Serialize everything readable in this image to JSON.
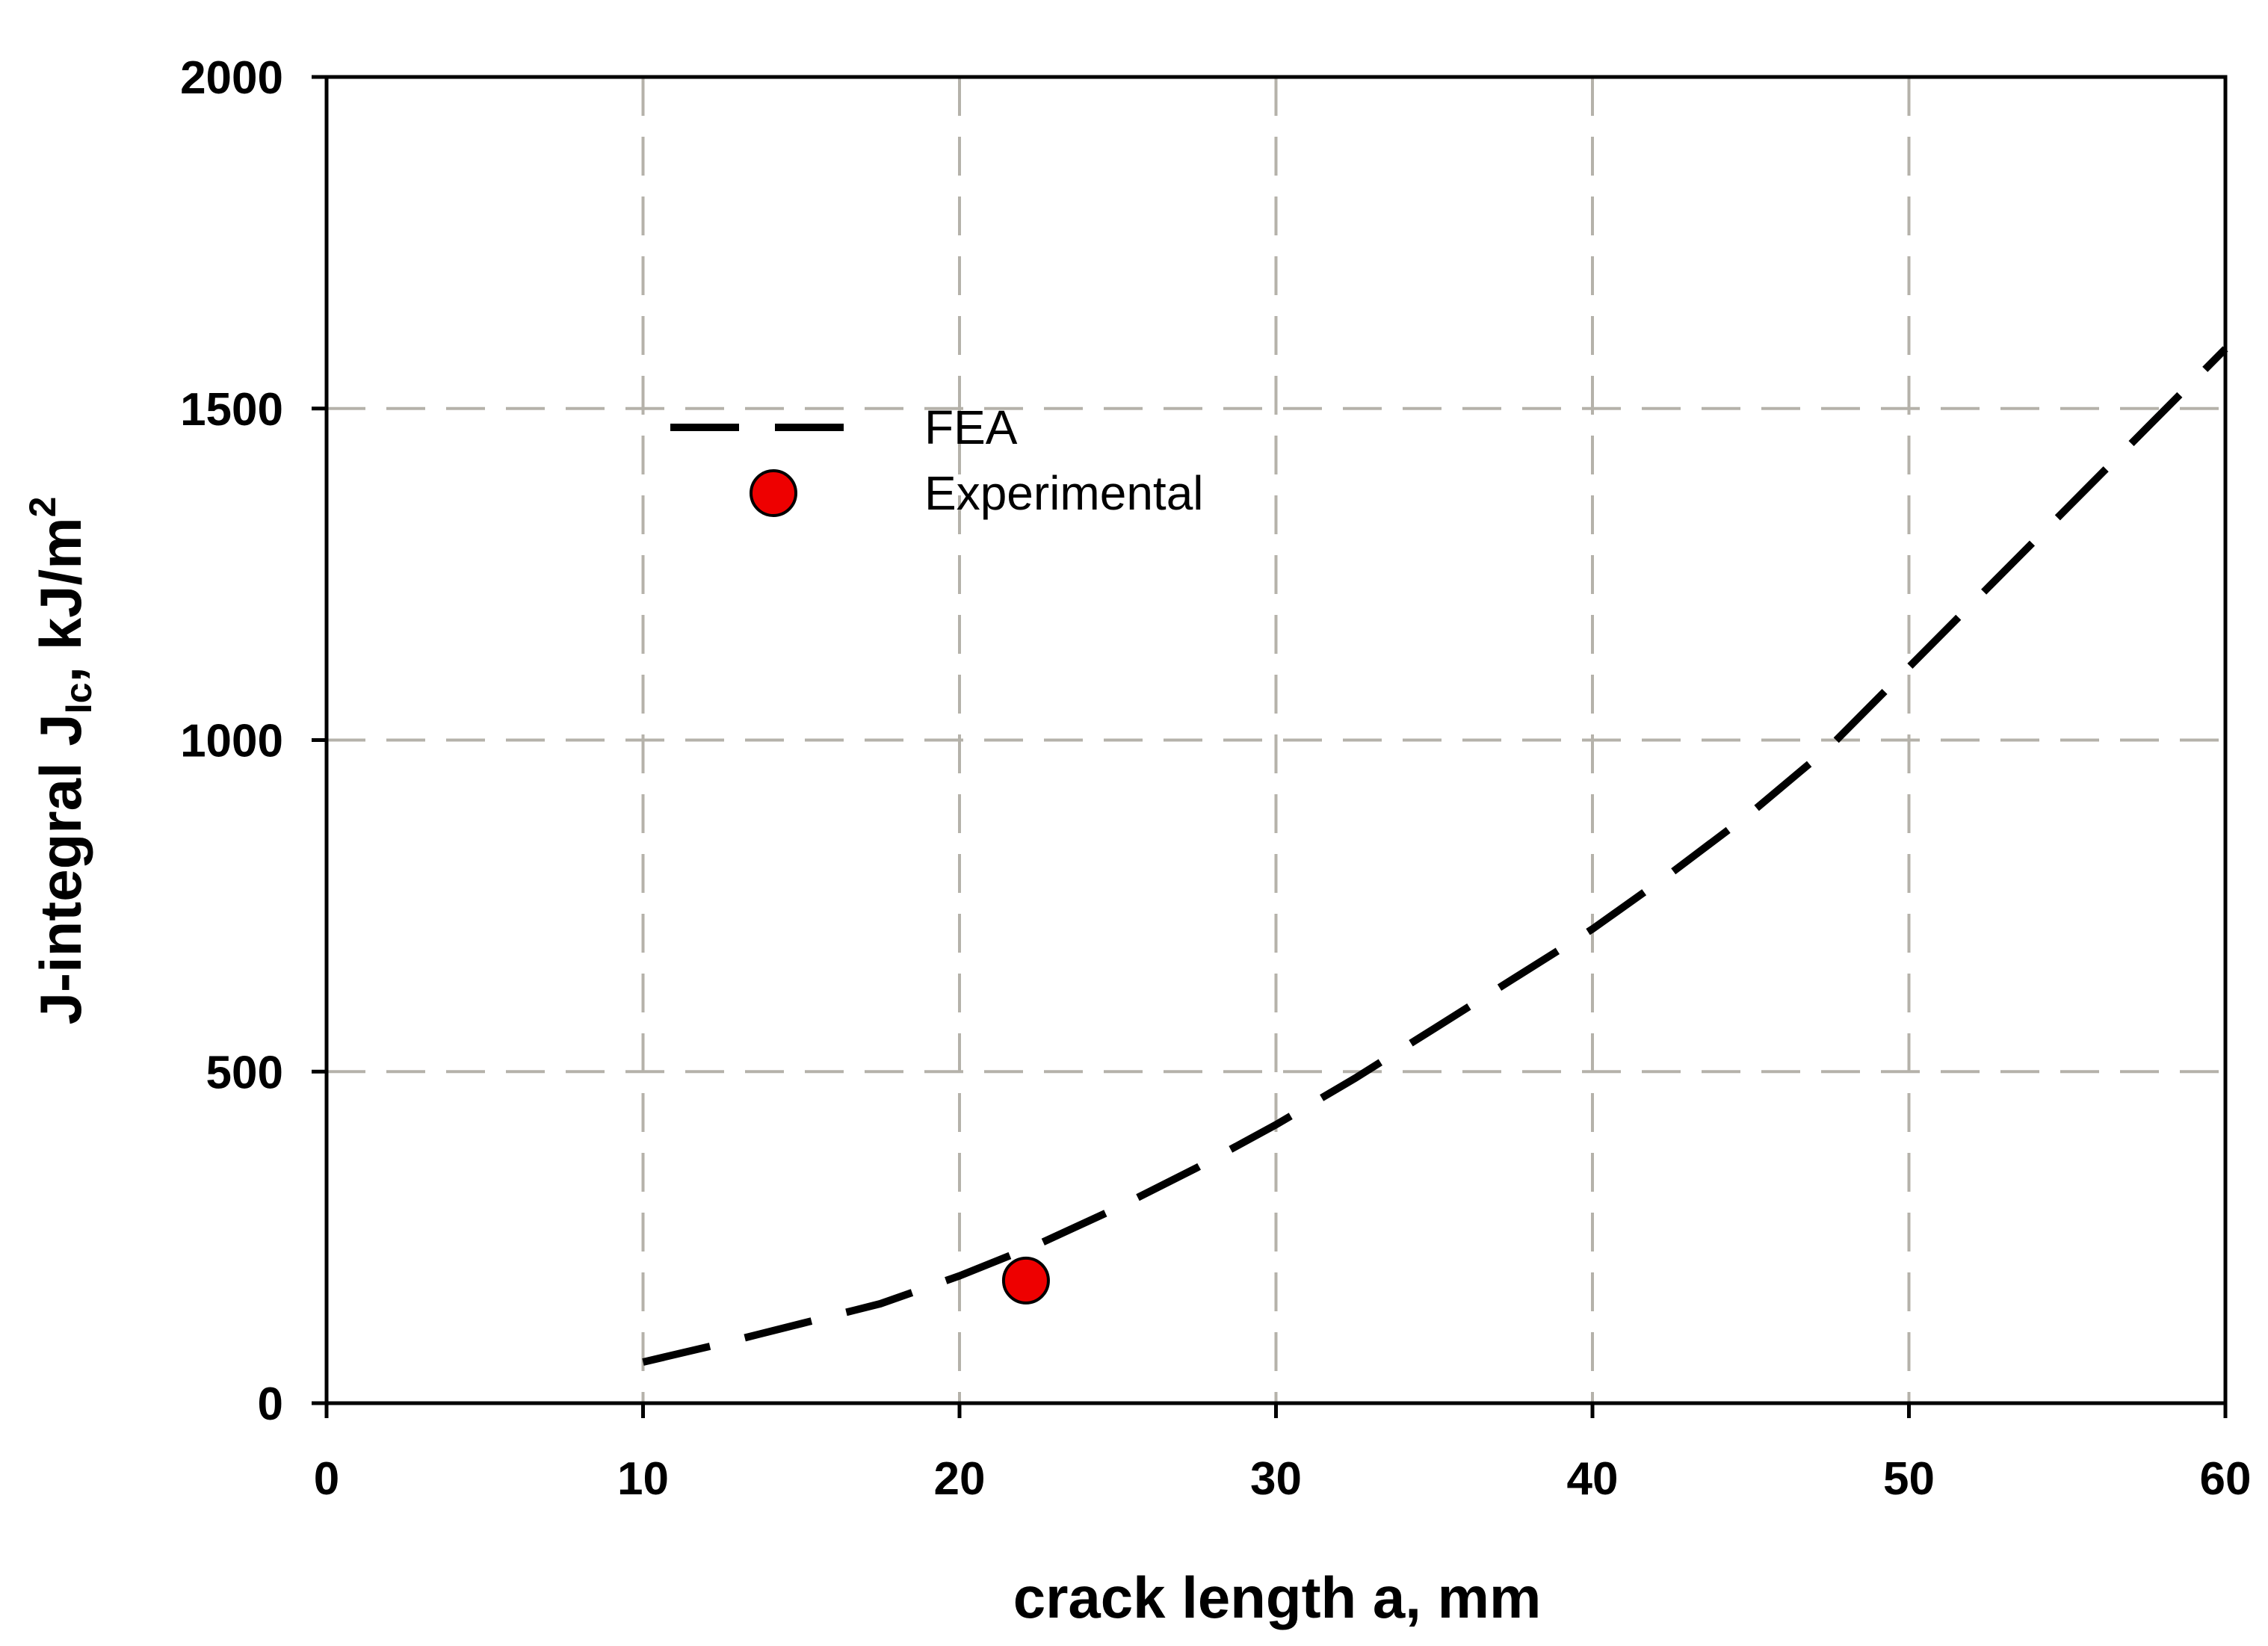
{
  "chart_data": {
    "type": "line",
    "title": "",
    "xlabel": "crack length a, mm",
    "ylabel": {
      "main": "J-integral J",
      "subscript": "Ic",
      "suffix": ", kJ/m",
      "superscript": "2"
    },
    "xlim": [
      0,
      60
    ],
    "ylim": [
      0,
      2000
    ],
    "xticks": [
      0,
      10,
      20,
      30,
      40,
      50,
      60
    ],
    "yticks": [
      0,
      500,
      1000,
      1500,
      2000
    ],
    "xtick_labels": [
      "0",
      "10",
      "20",
      "30",
      "40",
      "50",
      "60"
    ],
    "ytick_labels": [
      "0",
      "500",
      "1000",
      "1500",
      "2000"
    ],
    "grid": true,
    "legend_position": "upper-left",
    "series": [
      {
        "name": "FEA",
        "style": "dashed-line",
        "color": "#000000",
        "x": [
          10,
          12.5,
          15,
          17.5,
          20,
          22.5,
          25,
          27.5,
          30,
          32.5,
          35,
          37.5,
          40,
          42.5,
          45,
          47.5,
          50,
          52.5,
          55,
          57.5,
          60
        ],
        "y": [
          62,
          90,
          120,
          150,
          192,
          240,
          295,
          355,
          420,
          490,
          565,
          640,
          715,
          800,
          890,
          990,
          1110,
          1230,
          1350,
          1470,
          1590
        ]
      },
      {
        "name": "Experimental",
        "style": "marker-circle",
        "color": "#ee0000",
        "x": [
          22.1
        ],
        "y": [
          185
        ]
      }
    ]
  }
}
